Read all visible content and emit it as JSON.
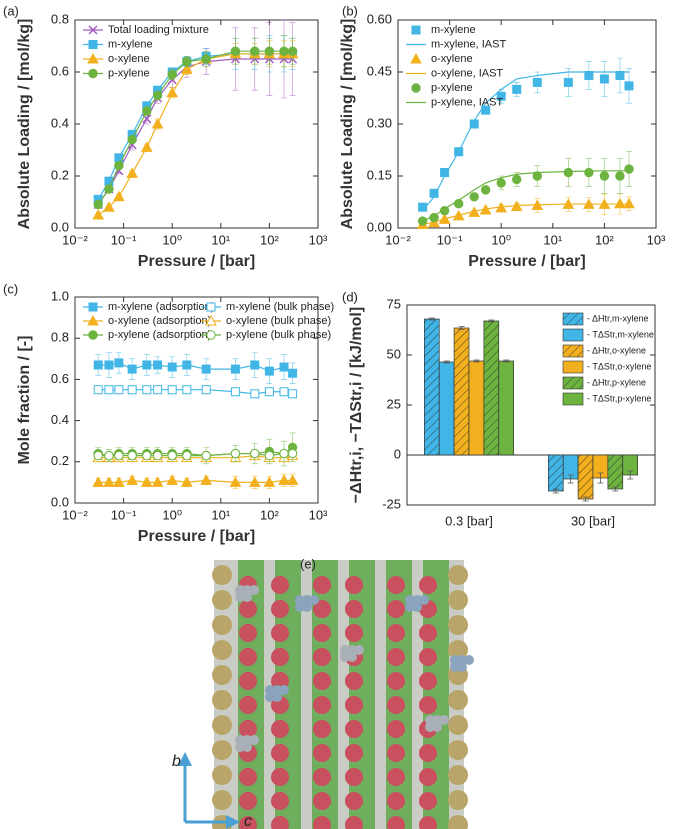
{
  "chart_data": [
    {
      "type": "line",
      "panel_label": "(a)",
      "xlabel": "Pressure / [bar]",
      "ylabel": "Absolute Loading / [mol/kg]",
      "log_x": true,
      "legend": "upper left",
      "xlim": [
        0.01,
        1000
      ],
      "xticks": [
        {
          "value": 0.01,
          "label": "10⁻²"
        },
        {
          "value": 0.1,
          "label": "10⁻¹"
        },
        {
          "value": 1,
          "label": "10⁰"
        },
        {
          "value": 10,
          "label": "10¹"
        },
        {
          "value": 100,
          "label": "10²"
        },
        {
          "value": 1000,
          "label": "10³"
        }
      ],
      "ylim": [
        0,
        0.8
      ],
      "yticks": [
        {
          "value": 0,
          "label": "0.0"
        },
        0.2,
        0.4,
        0.6,
        0.8
      ],
      "x": [
        0.03,
        0.05,
        0.08,
        0.15,
        0.3,
        0.5,
        1,
        2,
        5,
        20,
        50,
        100,
        200,
        300
      ],
      "series": [
        {
          "name": "Total loading mixture",
          "color": "#a35cc0",
          "marker": "x",
          "filled": true,
          "line": true,
          "values": [
            0.09,
            0.15,
            0.22,
            0.32,
            0.42,
            0.5,
            0.57,
            0.62,
            0.64,
            0.65,
            0.65,
            0.65,
            0.65,
            0.65
          ],
          "errors": [
            0.01,
            0.01,
            0.01,
            0.02,
            0.02,
            0.02,
            0.03,
            0.04,
            0.05,
            0.12,
            0.12,
            0.14,
            0.15,
            0.14
          ]
        },
        {
          "name": "m-xylene",
          "color": "#41b6e6",
          "marker": "square",
          "filled": true,
          "line": true,
          "values": [
            0.11,
            0.18,
            0.27,
            0.36,
            0.47,
            0.53,
            0.6,
            0.64,
            0.66,
            0.67,
            0.67,
            0.67,
            0.67,
            0.67
          ],
          "errors": [
            0.005,
            0.005,
            0.01,
            0.01,
            0.01,
            0.01,
            0.01,
            0.02,
            0.03,
            0.06,
            0.06,
            0.07,
            0.07,
            0.06
          ]
        },
        {
          "name": "o-xylene",
          "color": "#f2b01e",
          "marker": "triangle",
          "filled": true,
          "line": true,
          "values": [
            0.05,
            0.08,
            0.12,
            0.21,
            0.31,
            0.4,
            0.52,
            0.61,
            0.65,
            0.67,
            0.67,
            0.67,
            0.67,
            0.67
          ],
          "errors": [
            0.005,
            0.005,
            0.01,
            0.01,
            0.01,
            0.02,
            0.02,
            0.02,
            0.03,
            0.04,
            0.04,
            0.05,
            0.05,
            0.05
          ]
        },
        {
          "name": "p-xylene",
          "color": "#6cb33f",
          "marker": "circle",
          "filled": true,
          "line": true,
          "values": [
            0.09,
            0.15,
            0.24,
            0.34,
            0.45,
            0.51,
            0.59,
            0.64,
            0.65,
            0.68,
            0.68,
            0.68,
            0.68,
            0.68
          ],
          "errors": [
            0.005,
            0.005,
            0.01,
            0.01,
            0.01,
            0.01,
            0.02,
            0.02,
            0.03,
            0.05,
            0.05,
            0.05,
            0.06,
            0.05
          ]
        }
      ]
    },
    {
      "type": "line",
      "panel_label": "(b)",
      "xlabel": "Pressure / [bar]",
      "ylabel": "Absolute Loading / [mol/kg]",
      "log_x": true,
      "legend": "upper left",
      "xlim": [
        0.01,
        1000
      ],
      "xticks": [
        {
          "value": 0.01,
          "label": "10⁻²"
        },
        {
          "value": 0.1,
          "label": "10⁻¹"
        },
        {
          "value": 1,
          "label": "10⁰"
        },
        {
          "value": 10,
          "label": "10¹"
        },
        {
          "value": 100,
          "label": "10²"
        },
        {
          "value": 1000,
          "label": "10³"
        }
      ],
      "ylim": [
        0,
        0.6
      ],
      "yticks": [
        {
          "value": 0,
          "label": "0.00"
        },
        0.15,
        {
          "value": 0.3,
          "label": "0.30"
        },
        0.45,
        {
          "value": 0.6,
          "label": "0.60"
        }
      ],
      "x": [
        0.03,
        0.05,
        0.08,
        0.15,
        0.3,
        0.5,
        1,
        2,
        5,
        20,
        50,
        100,
        200,
        300
      ],
      "series": [
        {
          "name": "m-xylene",
          "color": "#41b6e6",
          "marker": "square",
          "filled": true,
          "line": false,
          "values": [
            0.06,
            0.1,
            0.16,
            0.22,
            0.3,
            0.34,
            0.38,
            0.4,
            0.42,
            0.42,
            0.44,
            0.43,
            0.44,
            0.41
          ],
          "errors": [
            0.005,
            0.005,
            0.01,
            0.01,
            0.01,
            0.01,
            0.02,
            0.02,
            0.03,
            0.04,
            0.04,
            0.05,
            0.05,
            0.05
          ]
        },
        {
          "name": "m-xylene, IAST",
          "color": "#41b6e6",
          "marker": null,
          "filled": false,
          "line": true,
          "values": [
            0.05,
            0.09,
            0.15,
            0.22,
            0.31,
            0.36,
            0.4,
            0.43,
            0.44,
            0.45,
            0.45,
            0.45,
            0.45,
            0.45
          ]
        },
        {
          "name": "o-xylene",
          "color": "#f2b01e",
          "marker": "triangle",
          "filled": true,
          "line": false,
          "values": [
            0.01,
            0.015,
            0.025,
            0.035,
            0.045,
            0.052,
            0.058,
            0.062,
            0.065,
            0.068,
            0.068,
            0.068,
            0.07,
            0.07
          ],
          "errors": [
            0.003,
            0.003,
            0.005,
            0.005,
            0.005,
            0.01,
            0.01,
            0.01,
            0.02,
            0.02,
            0.02,
            0.03,
            0.03,
            0.02
          ]
        },
        {
          "name": "o-xylene, IAST",
          "color": "#f2b01e",
          "marker": null,
          "filled": false,
          "line": true,
          "values": [
            0.01,
            0.017,
            0.026,
            0.037,
            0.048,
            0.055,
            0.061,
            0.065,
            0.067,
            0.069,
            0.069,
            0.069,
            0.069,
            0.069
          ]
        },
        {
          "name": "p-xylene",
          "color": "#6cb33f",
          "marker": "circle",
          "filled": true,
          "line": false,
          "values": [
            0.02,
            0.03,
            0.05,
            0.07,
            0.09,
            0.11,
            0.13,
            0.14,
            0.15,
            0.16,
            0.16,
            0.15,
            0.15,
            0.17
          ],
          "errors": [
            0.003,
            0.005,
            0.005,
            0.01,
            0.01,
            0.01,
            0.02,
            0.02,
            0.03,
            0.04,
            0.04,
            0.05,
            0.05,
            0.05
          ]
        },
        {
          "name": "p-xylene, IAST",
          "color": "#6cb33f",
          "marker": null,
          "filled": false,
          "line": true,
          "values": [
            0.02,
            0.035,
            0.055,
            0.08,
            0.11,
            0.13,
            0.145,
            0.155,
            0.16,
            0.163,
            0.164,
            0.165,
            0.165,
            0.165
          ]
        }
      ]
    },
    {
      "type": "line",
      "panel_label": "(c)",
      "xlabel": "Pressure / [bar]",
      "ylabel": "Mole fraction / [-]",
      "log_x": true,
      "legend": "upper center",
      "xlim": [
        0.01,
        1000
      ],
      "xticks": [
        {
          "value": 0.01,
          "label": "10⁻²"
        },
        {
          "value": 0.1,
          "label": "10⁻¹"
        },
        {
          "value": 1,
          "label": "10⁰"
        },
        {
          "value": 10,
          "label": "10¹"
        },
        {
          "value": 100,
          "label": "10²"
        },
        {
          "value": 1000,
          "label": "10³"
        }
      ],
      "ylim": [
        0,
        1
      ],
      "yticks": [
        {
          "value": 0,
          "label": "0.0"
        },
        0.2,
        0.4,
        0.6,
        0.8,
        {
          "value": 1,
          "label": "1.0"
        }
      ],
      "x": [
        0.03,
        0.05,
        0.08,
        0.15,
        0.3,
        0.5,
        1,
        2,
        5,
        20,
        50,
        100,
        200,
        300
      ],
      "series": [
        {
          "name": "m-xylene (adsorption)",
          "color": "#41b6e6",
          "marker": "square",
          "filled": true,
          "line": true,
          "values": [
            0.67,
            0.67,
            0.68,
            0.65,
            0.67,
            0.67,
            0.66,
            0.67,
            0.65,
            0.65,
            0.67,
            0.64,
            0.66,
            0.63
          ],
          "errors": [
            0.05,
            0.06,
            0.05,
            0.05,
            0.05,
            0.04,
            0.05,
            0.05,
            0.05,
            0.05,
            0.06,
            0.06,
            0.06,
            0.05
          ]
        },
        {
          "name": "m-xylene (bulk phase)",
          "color": "#41b6e6",
          "marker": "square",
          "filled": false,
          "line": true,
          "values": [
            0.55,
            0.55,
            0.55,
            0.55,
            0.55,
            0.55,
            0.55,
            0.55,
            0.55,
            0.54,
            0.53,
            0.54,
            0.54,
            0.53
          ]
        },
        {
          "name": "o-xylene (adsorption)",
          "color": "#f2b01e",
          "marker": "triangle",
          "filled": true,
          "line": true,
          "values": [
            0.1,
            0.1,
            0.1,
            0.11,
            0.1,
            0.1,
            0.11,
            0.1,
            0.11,
            0.1,
            0.1,
            0.1,
            0.11,
            0.11
          ],
          "errors": [
            0.02,
            0.02,
            0.02,
            0.02,
            0.02,
            0.02,
            0.02,
            0.02,
            0.02,
            0.03,
            0.03,
            0.03,
            0.03,
            0.03
          ]
        },
        {
          "name": "o-xylene (bulk phase)",
          "color": "#f2b01e",
          "marker": "triangle",
          "filled": false,
          "line": true,
          "values": [
            0.22,
            0.22,
            0.22,
            0.22,
            0.22,
            0.22,
            0.22,
            0.22,
            0.22,
            0.22,
            0.23,
            0.22,
            0.22,
            0.23
          ]
        },
        {
          "name": "p-xylene (adsorption)",
          "color": "#6cb33f",
          "marker": "circle",
          "filled": true,
          "line": true,
          "values": [
            0.24,
            0.23,
            0.24,
            0.24,
            0.24,
            0.24,
            0.24,
            0.24,
            0.23,
            0.24,
            0.24,
            0.25,
            0.24,
            0.27
          ],
          "errors": [
            0.03,
            0.03,
            0.03,
            0.03,
            0.03,
            0.03,
            0.03,
            0.03,
            0.04,
            0.04,
            0.05,
            0.06,
            0.06,
            0.07
          ]
        },
        {
          "name": "p-xylene (bulk phase)",
          "color": "#6cb33f",
          "marker": "circle",
          "filled": false,
          "line": true,
          "values": [
            0.23,
            0.23,
            0.23,
            0.23,
            0.23,
            0.23,
            0.23,
            0.23,
            0.23,
            0.24,
            0.24,
            0.23,
            0.24,
            0.24
          ]
        }
      ]
    },
    {
      "type": "bar",
      "panel_label": "(d)",
      "ylabel": "−ΔHtr,i, −TΔStr,i / [kJ/mol]",
      "legend": "upper right",
      "categories": [
        "0.3 [bar]",
        "30 [bar]"
      ],
      "ylim": [
        -25,
        75
      ],
      "yticks": [
        -25,
        0,
        25,
        50,
        75
      ],
      "series": [
        {
          "name": "- ΔHtr,m-xylene",
          "color": "#41b6e6",
          "hatch": true,
          "values": [
            68,
            -18
          ],
          "errors": [
            0.5,
            1
          ]
        },
        {
          "name": "- TΔStr,m-xylene",
          "color": "#41b6e6",
          "hatch": false,
          "values": [
            46.5,
            -12
          ],
          "errors": [
            0.5,
            2
          ]
        },
        {
          "name": "- ΔHtr,o-xylene",
          "color": "#f2b01e",
          "hatch": true,
          "values": [
            63.5,
            -22
          ],
          "errors": [
            0.7,
            1
          ]
        },
        {
          "name": "- TΔStr,o-xylene",
          "color": "#f2b01e",
          "hatch": false,
          "values": [
            47,
            -11.5
          ],
          "errors": [
            0.5,
            2.5
          ]
        },
        {
          "name": "- ΔHtr,p-xylene",
          "color": "#6cb33f",
          "hatch": true,
          "values": [
            67,
            -17
          ],
          "errors": [
            0.5,
            1
          ]
        },
        {
          "name": "- TΔStr,p-xylene",
          "color": "#6cb33f",
          "hatch": false,
          "values": [
            47,
            -10
          ],
          "errors": [
            0.5,
            2
          ]
        }
      ]
    }
  ],
  "structure": {
    "panel_label": "(e)",
    "axis_b": "b",
    "axis_c": "c"
  }
}
